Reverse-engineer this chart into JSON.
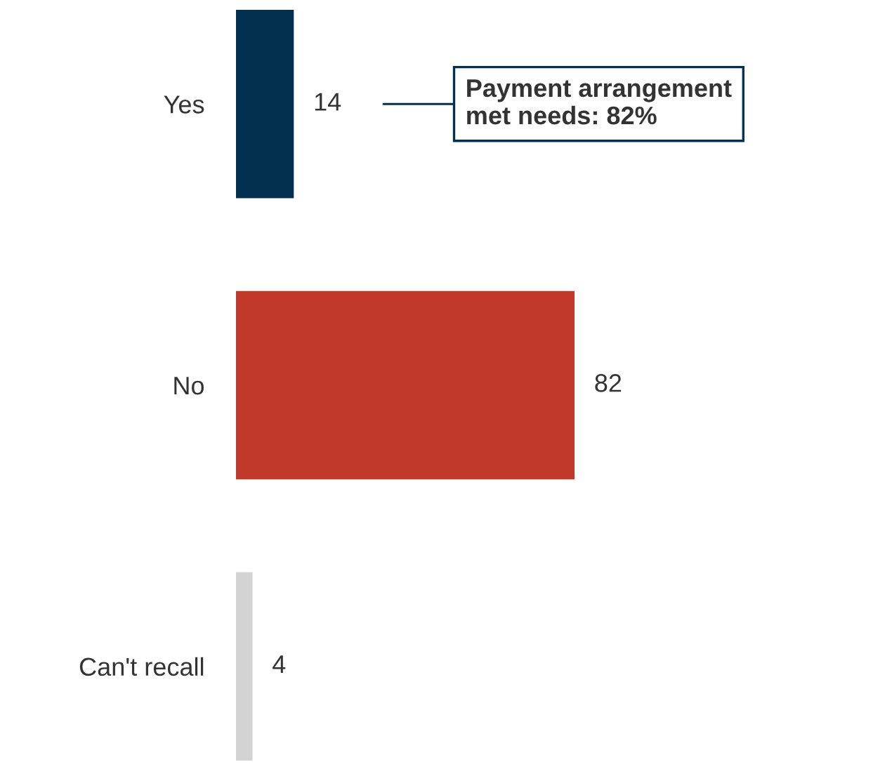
{
  "chart_data": {
    "type": "bar",
    "orientation": "horizontal",
    "categories": [
      "Yes",
      "No",
      "Can't recall"
    ],
    "values": [
      14,
      82,
      4
    ],
    "colors": [
      "#033050",
      "#c0392b",
      "#d3d3d3"
    ],
    "data_labels": true,
    "grid": false,
    "legend": false,
    "tick_labels": "y",
    "annotations": [
      "Payment arrangement\nmet needs: 82%"
    ]
  }
}
